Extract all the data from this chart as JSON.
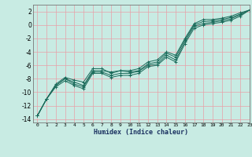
{
  "title": "",
  "xlabel": "Humidex (Indice chaleur)",
  "ylabel": "",
  "bg_color": "#c8ebe3",
  "grid_color": "#e8a0a8",
  "line_color": "#1a6a5a",
  "xlim": [
    -0.5,
    23
  ],
  "ylim": [
    -14.5,
    3
  ],
  "yticks": [
    2,
    0,
    -2,
    -4,
    -6,
    -8,
    -10,
    -12,
    -14
  ],
  "xticks": [
    0,
    1,
    2,
    3,
    4,
    5,
    6,
    7,
    8,
    9,
    10,
    11,
    12,
    13,
    14,
    15,
    16,
    17,
    18,
    19,
    20,
    21,
    22,
    23
  ],
  "series": [
    {
      "x": [
        0,
        1,
        2,
        3,
        4,
        5,
        6,
        7,
        8,
        9,
        10,
        11,
        12,
        13,
        14,
        15,
        16,
        17,
        18,
        19,
        20,
        21,
        22,
        23
      ],
      "y": [
        -13.5,
        -11.0,
        -8.8,
        -7.8,
        -8.2,
        -8.5,
        -6.5,
        -6.5,
        -7.2,
        -6.8,
        -6.8,
        -6.5,
        -5.5,
        -5.2,
        -4.0,
        -4.5,
        -2.0,
        0.2,
        0.8,
        0.8,
        1.0,
        1.3,
        1.8,
        2.2
      ]
    },
    {
      "x": [
        0,
        1,
        2,
        3,
        4,
        5,
        6,
        7,
        8,
        9,
        10,
        11,
        12,
        13,
        14,
        15,
        16,
        17,
        18,
        19,
        20,
        21,
        22,
        23
      ],
      "y": [
        -13.5,
        -11.0,
        -9.0,
        -8.0,
        -8.5,
        -9.0,
        -6.8,
        -6.8,
        -7.0,
        -6.8,
        -7.0,
        -6.8,
        -5.8,
        -5.5,
        -4.2,
        -4.8,
        -2.2,
        0.0,
        0.5,
        0.6,
        0.8,
        1.1,
        1.6,
        2.2
      ]
    },
    {
      "x": [
        0,
        1,
        2,
        3,
        4,
        5,
        6,
        7,
        8,
        9,
        10,
        11,
        12,
        13,
        14,
        15,
        16,
        17,
        18,
        19,
        20,
        21,
        22,
        23
      ],
      "y": [
        -13.5,
        -11.0,
        -9.0,
        -8.0,
        -8.8,
        -9.2,
        -7.0,
        -7.0,
        -7.5,
        -7.2,
        -7.2,
        -6.9,
        -6.0,
        -5.8,
        -4.5,
        -5.2,
        -2.5,
        -0.2,
        0.2,
        0.4,
        0.6,
        0.9,
        1.5,
        2.2
      ]
    },
    {
      "x": [
        0,
        1,
        2,
        3,
        4,
        5,
        6,
        7,
        8,
        9,
        10,
        11,
        12,
        13,
        14,
        15,
        16,
        17,
        18,
        19,
        20,
        21,
        22,
        23
      ],
      "y": [
        -13.5,
        -11.0,
        -9.2,
        -8.3,
        -9.0,
        -9.5,
        -7.2,
        -7.2,
        -7.8,
        -7.5,
        -7.5,
        -7.2,
        -6.2,
        -6.0,
        -4.8,
        -5.5,
        -2.8,
        -0.5,
        0.0,
        0.2,
        0.4,
        0.7,
        1.3,
        2.2
      ]
    }
  ]
}
